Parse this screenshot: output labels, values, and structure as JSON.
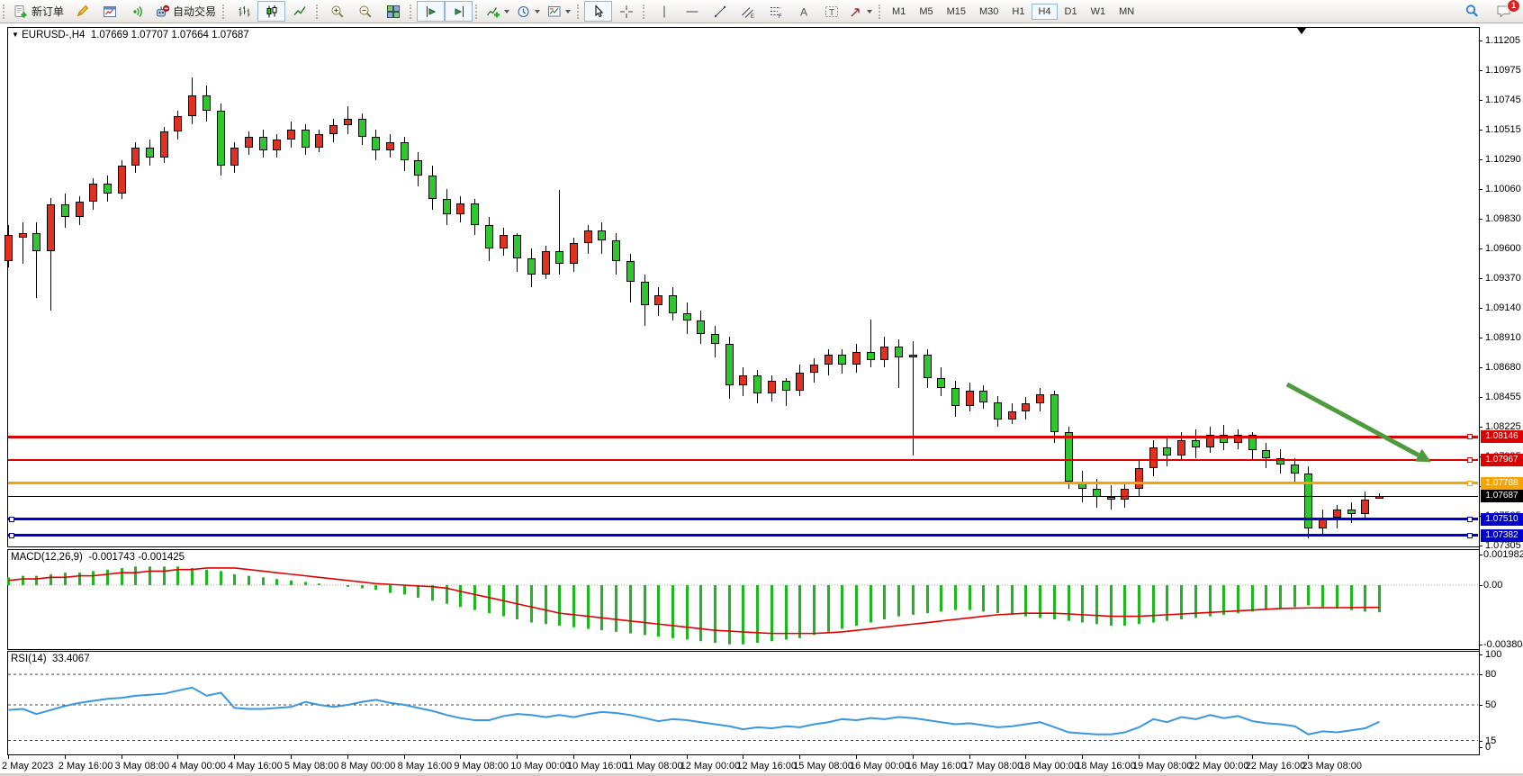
{
  "toolbar": {
    "new_order_label": "新订单",
    "autotrading_label": "自动交易",
    "timeframes": [
      {
        "label": "M1",
        "active": false
      },
      {
        "label": "M5",
        "active": false
      },
      {
        "label": "M15",
        "active": false
      },
      {
        "label": "M30",
        "active": false
      },
      {
        "label": "H1",
        "active": false
      },
      {
        "label": "H4",
        "active": true
      },
      {
        "label": "D1",
        "active": false
      },
      {
        "label": "W1",
        "active": false
      },
      {
        "label": "MN",
        "active": false
      }
    ],
    "notification_badge": "1"
  },
  "chart": {
    "symbol_period": "EURUSD-,H4",
    "ohlc_text": "1.07669 1.07707 1.07664 1.07687"
  },
  "chart_data": {
    "type": "candlestick",
    "symbol": "EURUSD-",
    "timeframe": "H4",
    "title": "EURUSD-,H4",
    "current_bar": {
      "open": 1.07669,
      "high": 1.07707,
      "low": 1.07664,
      "close": 1.07687
    },
    "colors": {
      "bull": "#e0301e",
      "bear": "#2ec82e",
      "wick": "#000000",
      "macd_hist": "#1db81d",
      "macd_signal": "#e00000",
      "rsi_line": "#3a96dd",
      "arrow": "#4e9b3d"
    },
    "y_axis_ticks": [
      1.11205,
      1.10975,
      1.10745,
      1.10515,
      1.1029,
      1.1006,
      1.0983,
      1.096,
      1.0937,
      1.0914,
      1.0891,
      1.0868,
      1.08455,
      1.08225,
      1.07995,
      1.07765,
      1.07535,
      1.07305
    ],
    "x_axis_labels": [
      "2 May 2023",
      "2 May 16:00",
      "3 May 08:00",
      "4 May 00:00",
      "4 May 16:00",
      "5 May 08:00",
      "8 May 00:00",
      "8 May 16:00",
      "9 May 08:00",
      "10 May 00:00",
      "10 May 16:00",
      "11 May 08:00",
      "12 May 00:00",
      "12 May 16:00",
      "15 May 08:00",
      "16 May 00:00",
      "16 May 16:00",
      "17 May 08:00",
      "18 May 00:00",
      "18 May 16:00",
      "19 May 08:00",
      "22 May 00:00",
      "22 May 16:00",
      "23 May 08:00"
    ],
    "levels": [
      {
        "price": 1.08146,
        "label": "1.08146",
        "color": "#dd0000",
        "width": 3,
        "left_handle": false
      },
      {
        "price": 1.07967,
        "label": "1.07967",
        "color": "#dd0000",
        "width": 2,
        "left_handle": false
      },
      {
        "price": 1.07788,
        "label": "1.07788",
        "color": "#f7a400",
        "width": 3,
        "left_handle": false
      },
      {
        "price": 1.0751,
        "label": "1.07510",
        "color": "#0000cc",
        "width": 3,
        "left_handle": true
      },
      {
        "price": 1.07382,
        "label": "1.07382",
        "color": "#0000cc",
        "width": 3,
        "left_handle": true
      }
    ],
    "current_price_line": {
      "price": 1.07687,
      "label": "1.07687",
      "color": "#000000"
    },
    "arrow": {
      "from_bar": 90.5,
      "from_price": 1.0855,
      "to_bar": 100.7,
      "to_price": 1.0795
    },
    "shift_marker_bar": 91.5,
    "candles": [
      [
        1.095,
        1.0978,
        1.0945,
        1.097
      ],
      [
        1.0968,
        1.098,
        1.0948,
        1.0972
      ],
      [
        1.0972,
        1.098,
        1.0922,
        1.0958
      ],
      [
        1.0958,
        1.0999,
        1.0912,
        1.0994
      ],
      [
        1.0994,
        1.1002,
        1.0976,
        1.0984
      ],
      [
        1.0984,
        1.1,
        1.0978,
        1.0996
      ],
      [
        1.0996,
        1.1014,
        1.099,
        1.101
      ],
      [
        1.101,
        1.1016,
        1.0996,
        1.1002
      ],
      [
        1.1002,
        1.1028,
        1.0998,
        1.1024
      ],
      [
        1.1024,
        1.1042,
        1.1018,
        1.1038
      ],
      [
        1.1038,
        1.1044,
        1.1024,
        1.103
      ],
      [
        1.103,
        1.1054,
        1.1026,
        1.105
      ],
      [
        1.105,
        1.1066,
        1.1044,
        1.1062
      ],
      [
        1.1062,
        1.1092,
        1.1056,
        1.1078
      ],
      [
        1.1078,
        1.1086,
        1.1058,
        1.1066
      ],
      [
        1.1066,
        1.1072,
        1.1016,
        1.1024
      ],
      [
        1.1024,
        1.1042,
        1.1018,
        1.1038
      ],
      [
        1.1038,
        1.105,
        1.1032,
        1.1046
      ],
      [
        1.1046,
        1.1052,
        1.103,
        1.1036
      ],
      [
        1.1036,
        1.1048,
        1.103,
        1.1044
      ],
      [
        1.1044,
        1.1058,
        1.1038,
        1.1052
      ],
      [
        1.1052,
        1.1056,
        1.1032,
        1.1038
      ],
      [
        1.1038,
        1.1052,
        1.1034,
        1.1048
      ],
      [
        1.1048,
        1.106,
        1.1042,
        1.1055
      ],
      [
        1.1055,
        1.107,
        1.1048,
        1.106
      ],
      [
        1.106,
        1.1064,
        1.104,
        1.1046
      ],
      [
        1.1046,
        1.1052,
        1.1028,
        1.1036
      ],
      [
        1.1036,
        1.1048,
        1.103,
        1.1042
      ],
      [
        1.1042,
        1.1046,
        1.102,
        1.1028
      ],
      [
        1.1028,
        1.1034,
        1.1008,
        1.1016
      ],
      [
        1.1016,
        1.1024,
        1.099,
        1.0998
      ],
      [
        1.0998,
        1.1006,
        1.0978,
        1.0986
      ],
      [
        1.0986,
        1.1,
        1.098,
        1.0995
      ],
      [
        1.0995,
        1.0998,
        1.097,
        1.0978
      ],
      [
        1.0978,
        1.0984,
        1.095,
        1.096
      ],
      [
        1.096,
        1.0976,
        1.0954,
        1.097
      ],
      [
        1.097,
        1.0972,
        1.0942,
        1.0952
      ],
      [
        1.0952,
        1.096,
        1.093,
        1.094
      ],
      [
        1.094,
        1.0962,
        1.0936,
        1.0958
      ],
      [
        1.0958,
        1.1005,
        1.094,
        1.0948
      ],
      [
        1.0948,
        1.0968,
        1.0942,
        1.0964
      ],
      [
        1.0964,
        1.0978,
        1.0956,
        1.0974
      ],
      [
        1.0974,
        1.098,
        1.0956,
        1.0966
      ],
      [
        1.0966,
        1.0972,
        1.094,
        1.095
      ],
      [
        1.095,
        1.0956,
        1.0918,
        1.0934
      ],
      [
        1.0934,
        1.094,
        1.09,
        1.0916
      ],
      [
        1.0916,
        1.093,
        1.0908,
        1.0924
      ],
      [
        1.0924,
        1.093,
        1.0904,
        1.091
      ],
      [
        1.091,
        1.0918,
        1.0894,
        1.0904
      ],
      [
        1.0904,
        1.0912,
        1.0886,
        1.0894
      ],
      [
        1.0894,
        1.09,
        1.0876,
        1.0886
      ],
      [
        1.0886,
        1.0892,
        1.0844,
        1.0854
      ],
      [
        1.0854,
        1.0868,
        1.0846,
        1.0862
      ],
      [
        1.0862,
        1.0866,
        1.084,
        1.0848
      ],
      [
        1.0848,
        1.0862,
        1.0842,
        1.0858
      ],
      [
        1.0858,
        1.086,
        1.0838,
        1.085
      ],
      [
        1.085,
        1.087,
        1.0846,
        1.0864
      ],
      [
        1.0864,
        1.0875,
        1.0856,
        1.087
      ],
      [
        1.087,
        1.0882,
        1.0862,
        1.0878
      ],
      [
        1.0878,
        1.0882,
        1.0863,
        1.087
      ],
      [
        1.087,
        1.0886,
        1.0864,
        1.088
      ],
      [
        1.088,
        1.0905,
        1.0868,
        1.0874
      ],
      [
        1.0874,
        1.0892,
        1.0868,
        1.0884
      ],
      [
        1.0884,
        1.089,
        1.0852,
        1.0876
      ],
      [
        1.0876,
        1.0888,
        1.08,
        1.0878
      ],
      [
        1.0878,
        1.0882,
        1.0852,
        1.086
      ],
      [
        1.086,
        1.0868,
        1.0846,
        1.0852
      ],
      [
        1.0852,
        1.0858,
        1.083,
        1.0838
      ],
      [
        1.0838,
        1.0856,
        1.0834,
        1.085
      ],
      [
        1.085,
        1.0854,
        1.0836,
        1.0841
      ],
      [
        1.0841,
        1.0846,
        1.0822,
        1.0828
      ],
      [
        1.0828,
        1.084,
        1.0824,
        1.0834
      ],
      [
        1.0834,
        1.0845,
        1.0828,
        1.084
      ],
      [
        1.084,
        1.0852,
        1.0834,
        1.0847
      ],
      [
        1.0847,
        1.085,
        1.081,
        1.0818
      ],
      [
        1.0818,
        1.0822,
        1.0774,
        1.078
      ],
      [
        1.078,
        1.0788,
        1.0764,
        1.0774
      ],
      [
        1.0774,
        1.0782,
        1.076,
        1.0768
      ],
      [
        1.0768,
        1.0777,
        1.0758,
        1.0766
      ],
      [
        1.0766,
        1.078,
        1.076,
        1.0774
      ],
      [
        1.0774,
        1.0796,
        1.0768,
        1.079
      ],
      [
        1.079,
        1.0812,
        1.0784,
        1.0806
      ],
      [
        1.0806,
        1.0814,
        1.0792,
        1.08
      ],
      [
        1.08,
        1.0818,
        1.0796,
        1.0812
      ],
      [
        1.0812,
        1.082,
        1.0798,
        1.0806
      ],
      [
        1.0806,
        1.0822,
        1.0802,
        1.0816
      ],
      [
        1.0816,
        1.0824,
        1.0804,
        1.081
      ],
      [
        1.081,
        1.082,
        1.0805,
        1.0816
      ],
      [
        1.0816,
        1.0818,
        1.0796,
        1.0804
      ],
      [
        1.0804,
        1.081,
        1.079,
        1.0798
      ],
      [
        1.0798,
        1.0805,
        1.0786,
        1.0793
      ],
      [
        1.0793,
        1.0798,
        1.0778,
        1.0786
      ],
      [
        1.0786,
        1.0792,
        1.0736,
        1.0744
      ],
      [
        1.0744,
        1.0758,
        1.0738,
        1.0752
      ],
      [
        1.0752,
        1.0762,
        1.0744,
        1.0758
      ],
      [
        1.0758,
        1.0764,
        1.0748,
        1.0755
      ],
      [
        1.0755,
        1.0772,
        1.075,
        1.0766
      ],
      [
        1.07669,
        1.07707,
        1.07664,
        1.07687
      ]
    ],
    "macd": {
      "label": "MACD(12,26,9)",
      "values_text": "-0.001743 -0.001425",
      "scale": 0.0001,
      "ticks": [
        [
          0.001982,
          "0.001982"
        ],
        [
          0,
          "0.00"
        ],
        [
          -0.003804,
          "-0.003804"
        ]
      ],
      "histogram": [
        5,
        6,
        6,
        7,
        8,
        8,
        9,
        10,
        11,
        12,
        12,
        12,
        12,
        11,
        10,
        9,
        7,
        6,
        5,
        4,
        3,
        2,
        1,
        0,
        -1,
        -2,
        -3,
        -5,
        -6,
        -8,
        -10,
        -12,
        -14,
        -16,
        -18,
        -20,
        -22,
        -24,
        -25,
        -26,
        -27,
        -28,
        -29,
        -30,
        -31,
        -32,
        -33,
        -34,
        -35,
        -36,
        -37,
        -38,
        -38,
        -37,
        -36,
        -35,
        -34,
        -32,
        -30,
        -28,
        -26,
        -24,
        -22,
        -20,
        -19,
        -18,
        -17,
        -16,
        -16,
        -17,
        -18,
        -19,
        -20,
        -21,
        -22,
        -23,
        -24,
        -25,
        -26,
        -26,
        -25,
        -24,
        -23,
        -22,
        -21,
        -20,
        -19,
        -18,
        -17,
        -16,
        -15,
        -14,
        -13,
        -14,
        -15,
        -16,
        -17,
        -17.43
      ],
      "signal": [
        3,
        4,
        4,
        5,
        5,
        6,
        6,
        7,
        8,
        8,
        9,
        9,
        10,
        10,
        11,
        11,
        11,
        10,
        9,
        8,
        7,
        6,
        5,
        4,
        3,
        2,
        1,
        0.5,
        0,
        -0.5,
        -1,
        -2,
        -4,
        -6,
        -8,
        -10,
        -12,
        -14,
        -16,
        -18,
        -19,
        -20,
        -21,
        -22,
        -23,
        -24,
        -25,
        -26,
        -27,
        -28,
        -29,
        -29.5,
        -30,
        -30.5,
        -31,
        -31,
        -31,
        -31,
        -30.5,
        -30,
        -29,
        -28,
        -27,
        -26,
        -25,
        -24,
        -23,
        -22,
        -21,
        -20,
        -19,
        -18.5,
        -18,
        -18,
        -18,
        -18.5,
        -19,
        -19.5,
        -20,
        -20,
        -20,
        -19.5,
        -19,
        -18.5,
        -18,
        -17.5,
        -17,
        -16.5,
        -16,
        -15.5,
        -15,
        -14.8,
        -14.6,
        -14.5,
        -14.45,
        -14.4,
        -14.3,
        -14.25
      ]
    },
    "rsi": {
      "label": "RSI(14)",
      "value_text": "33.4067",
      "ticks": [
        100,
        80,
        50,
        15,
        0
      ],
      "dashed_levels": [
        80,
        50,
        15
      ],
      "values": [
        45,
        46,
        41,
        45,
        49,
        52,
        54,
        56,
        57,
        59,
        60,
        61,
        64,
        67,
        59,
        62,
        47,
        46,
        46,
        47,
        48,
        53,
        50,
        48,
        50,
        53,
        55,
        52,
        50,
        47,
        44,
        40,
        37,
        35,
        35,
        39,
        41,
        40,
        38,
        40,
        38,
        41,
        43,
        42,
        40,
        37,
        34,
        36,
        35,
        33,
        31,
        29,
        26,
        28,
        27,
        29,
        28,
        31,
        33,
        36,
        35,
        37,
        36,
        38,
        37,
        35,
        33,
        31,
        32,
        30,
        28,
        29,
        31,
        33,
        28,
        23,
        22,
        21,
        21,
        23,
        28,
        36,
        33,
        38,
        36,
        40,
        37,
        39,
        34,
        32,
        31,
        29,
        21,
        24,
        23,
        25,
        27,
        33.4
      ]
    }
  }
}
